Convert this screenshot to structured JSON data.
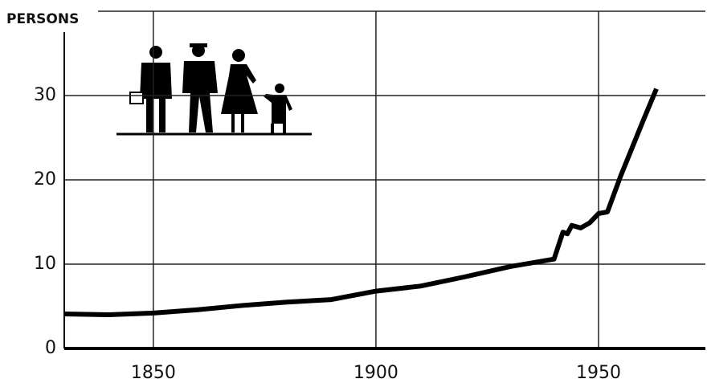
{
  "chart_data": {
    "type": "line",
    "y_label": "PERSONS",
    "x": [
      1830,
      1840,
      1850,
      1860,
      1870,
      1880,
      1890,
      1900,
      1910,
      1920,
      1930,
      1940,
      1942,
      1943,
      1944,
      1946,
      1948,
      1950,
      1952,
      1955,
      1960,
      1963
    ],
    "series": [
      {
        "name": "Persons",
        "color": "#000000",
        "values": [
          4.1,
          4.0,
          4.2,
          4.6,
          5.1,
          5.5,
          5.8,
          6.8,
          7.4,
          8.5,
          9.7,
          10.6,
          13.8,
          13.6,
          14.6,
          14.3,
          14.9,
          16.0,
          16.2,
          20.5,
          27.0,
          30.8
        ]
      }
    ],
    "xlim": [
      1830,
      1974
    ],
    "xticks": [
      1850,
      1900,
      1950
    ],
    "ylim": [
      0,
      40
    ],
    "yticks": [
      0,
      10,
      20,
      30
    ],
    "grid": true
  }
}
